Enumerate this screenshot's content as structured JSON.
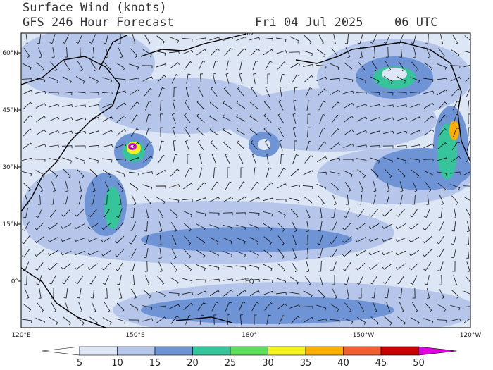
{
  "header": {
    "title": "Surface Wind (knots)",
    "subtitle": "GFS 246 Hour Forecast",
    "date": "Fri 04 Jul 2025",
    "time": "06 UTC"
  },
  "map": {
    "lat_labels": [
      "60°N",
      "45°N",
      "30°N",
      "15°N",
      "0°"
    ],
    "lon_labels": [
      "120°E",
      "150°E",
      "180°",
      "150°W",
      "120°W"
    ],
    "place_labels": [
      "ID",
      "EQ"
    ]
  },
  "colorbar": {
    "ticks": [
      5,
      10,
      15,
      20,
      25,
      30,
      35,
      40,
      45,
      50
    ],
    "colors": [
      "#ffffff",
      "#dde6f5",
      "#b5c6ea",
      "#6f94d6",
      "#36c49a",
      "#5ce05c",
      "#f2f21e",
      "#ffae00",
      "#f06030",
      "#c80000",
      "#e000e0"
    ]
  }
}
